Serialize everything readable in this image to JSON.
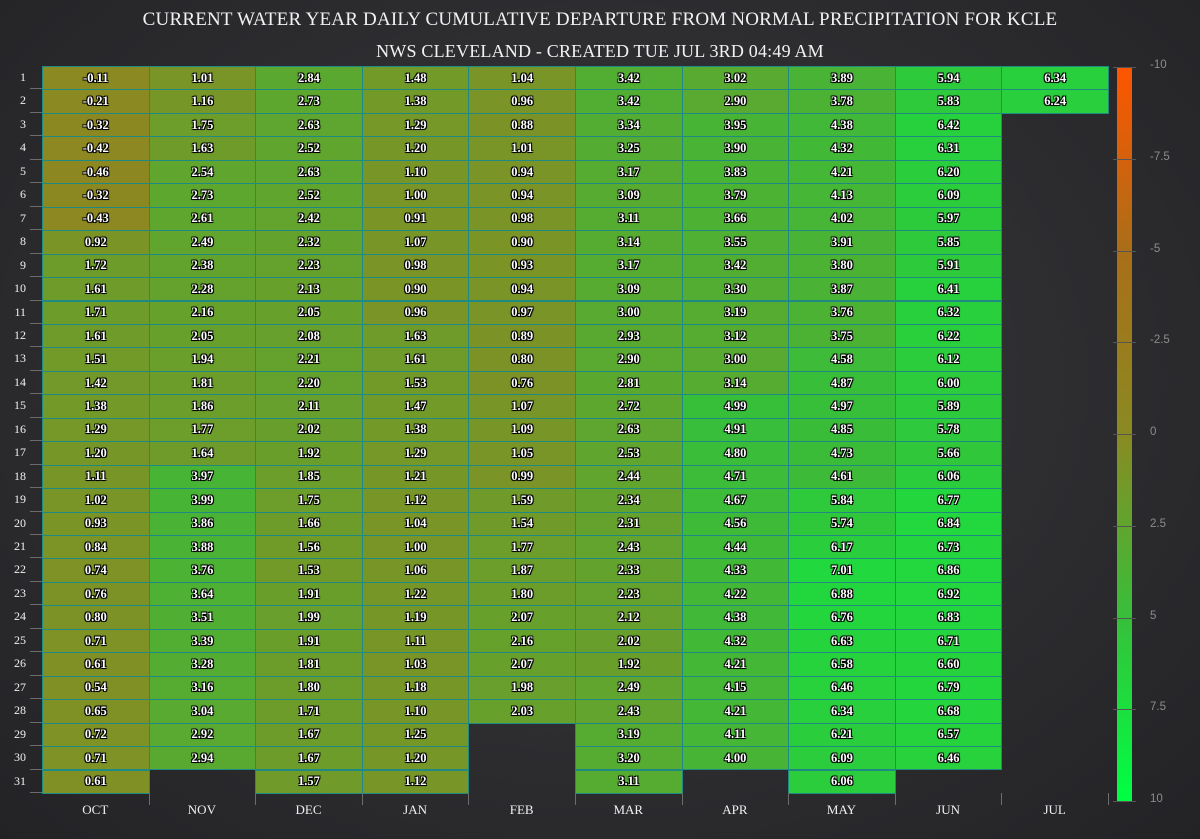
{
  "title": "CURRENT WATER YEAR DAILY CUMULATIVE DEPARTURE FROM NORMAL PRECIPITATION FOR KCLE",
  "subtitle": "NWS CLEVELAND - CREATED TUE JUL 3RD 04:49 AM",
  "chart_data": {
    "type": "heatmap",
    "title": "CURRENT WATER YEAR DAILY CUMULATIVE DEPARTURE FROM NORMAL PRECIPITATION FOR KCLE",
    "subtitle": "NWS CLEVELAND - CREATED TUE JUL 3RD 04:49 AM",
    "x_categories": [
      "OCT",
      "NOV",
      "DEC",
      "JAN",
      "FEB",
      "MAR",
      "APR",
      "MAY",
      "JUN",
      "JUL"
    ],
    "y_categories": [
      "1",
      "2",
      "3",
      "4",
      "5",
      "6",
      "7",
      "8",
      "9",
      "10",
      "11",
      "12",
      "13",
      "14",
      "15",
      "16",
      "17",
      "18",
      "19",
      "20",
      "21",
      "22",
      "23",
      "24",
      "25",
      "26",
      "27",
      "28",
      "29",
      "30",
      "31"
    ],
    "values": {
      "OCT": [
        "-0.11",
        "-0.21",
        "-0.32",
        "-0.42",
        "-0.46",
        "-0.32",
        "-0.43",
        "0.92",
        "1.72",
        "1.61",
        "1.71",
        "1.61",
        "1.51",
        "1.42",
        "1.38",
        "1.29",
        "1.20",
        "1.11",
        "1.02",
        "0.93",
        "0.84",
        "0.74",
        "0.76",
        "0.80",
        "0.71",
        "0.61",
        "0.54",
        "0.65",
        "0.72",
        "0.71",
        "0.61"
      ],
      "NOV": [
        "1.01",
        "1.16",
        "1.75",
        "1.63",
        "2.54",
        "2.73",
        "2.61",
        "2.49",
        "2.38",
        "2.28",
        "2.16",
        "2.05",
        "1.94",
        "1.81",
        "1.86",
        "1.77",
        "1.64",
        "3.97",
        "3.99",
        "3.86",
        "3.88",
        "3.76",
        "3.64",
        "3.51",
        "3.39",
        "3.28",
        "3.16",
        "3.04",
        "2.92",
        "2.94"
      ],
      "DEC": [
        "2.84",
        "2.73",
        "2.63",
        "2.52",
        "2.63",
        "2.52",
        "2.42",
        "2.32",
        "2.23",
        "2.13",
        "2.05",
        "2.08",
        "2.21",
        "2.20",
        "2.11",
        "2.02",
        "1.92",
        "1.85",
        "1.75",
        "1.66",
        "1.56",
        "1.53",
        "1.91",
        "1.99",
        "1.91",
        "1.81",
        "1.80",
        "1.71",
        "1.67",
        "1.67",
        "1.57"
      ],
      "JAN": [
        "1.48",
        "1.38",
        "1.29",
        "1.20",
        "1.10",
        "1.00",
        "0.91",
        "1.07",
        "0.98",
        "0.90",
        "0.96",
        "1.63",
        "1.61",
        "1.53",
        "1.47",
        "1.38",
        "1.29",
        "1.21",
        "1.12",
        "1.04",
        "1.00",
        "1.06",
        "1.22",
        "1.19",
        "1.11",
        "1.03",
        "1.18",
        "1.10",
        "1.25",
        "1.20",
        "1.12"
      ],
      "FEB": [
        "1.04",
        "0.96",
        "0.88",
        "1.01",
        "0.94",
        "0.94",
        "0.98",
        "0.90",
        "0.93",
        "0.94",
        "0.97",
        "0.89",
        "0.80",
        "0.76",
        "1.07",
        "1.09",
        "1.05",
        "0.99",
        "1.59",
        "1.54",
        "1.77",
        "1.87",
        "1.80",
        "2.07",
        "2.16",
        "2.07",
        "1.98",
        "2.03"
      ],
      "MAR": [
        "3.42",
        "3.42",
        "3.34",
        "3.25",
        "3.17",
        "3.09",
        "3.11",
        "3.14",
        "3.17",
        "3.09",
        "3.00",
        "2.93",
        "2.90",
        "2.81",
        "2.72",
        "2.63",
        "2.53",
        "2.44",
        "2.34",
        "2.31",
        "2.43",
        "2.33",
        "2.23",
        "2.12",
        "2.02",
        "1.92",
        "2.49",
        "2.43",
        "3.19",
        "3.20",
        "3.11"
      ],
      "APR": [
        "3.02",
        "2.90",
        "3.95",
        "3.90",
        "3.83",
        "3.79",
        "3.66",
        "3.55",
        "3.42",
        "3.30",
        "3.19",
        "3.12",
        "3.00",
        "3.14",
        "4.99",
        "4.91",
        "4.80",
        "4.71",
        "4.67",
        "4.56",
        "4.44",
        "4.33",
        "4.22",
        "4.38",
        "4.32",
        "4.21",
        "4.15",
        "4.21",
        "4.11",
        "4.00"
      ],
      "MAY": [
        "3.89",
        "3.78",
        "4.38",
        "4.32",
        "4.21",
        "4.13",
        "4.02",
        "3.91",
        "3.80",
        "3.87",
        "3.76",
        "3.75",
        "4.58",
        "4.87",
        "4.97",
        "4.85",
        "4.73",
        "4.61",
        "5.84",
        "5.74",
        "6.17",
        "7.01",
        "6.88",
        "6.76",
        "6.63",
        "6.58",
        "6.46",
        "6.34",
        "6.21",
        "6.09",
        "6.06"
      ],
      "JUN": [
        "5.94",
        "5.83",
        "6.42",
        "6.31",
        "6.20",
        "6.09",
        "5.97",
        "5.85",
        "5.91",
        "6.41",
        "6.32",
        "6.22",
        "6.12",
        "6.00",
        "5.89",
        "5.78",
        "5.66",
        "6.06",
        "6.77",
        "6.84",
        "6.73",
        "6.86",
        "6.92",
        "6.83",
        "6.71",
        "6.60",
        "6.79",
        "6.68",
        "6.57",
        "6.46"
      ],
      "JUL": [
        "6.34",
        "6.24"
      ]
    },
    "colorscale": {
      "min": -10,
      "max": 10,
      "tick_labels": [
        "-10",
        "-7.5",
        "-5",
        "-2.5",
        "0",
        "2.5",
        "5",
        "7.5",
        "10"
      ],
      "colors": [
        "#ff5500",
        "#aa6e18",
        "#8a8a22",
        "#37bf3a",
        "#00ff44"
      ]
    },
    "grid": true
  }
}
